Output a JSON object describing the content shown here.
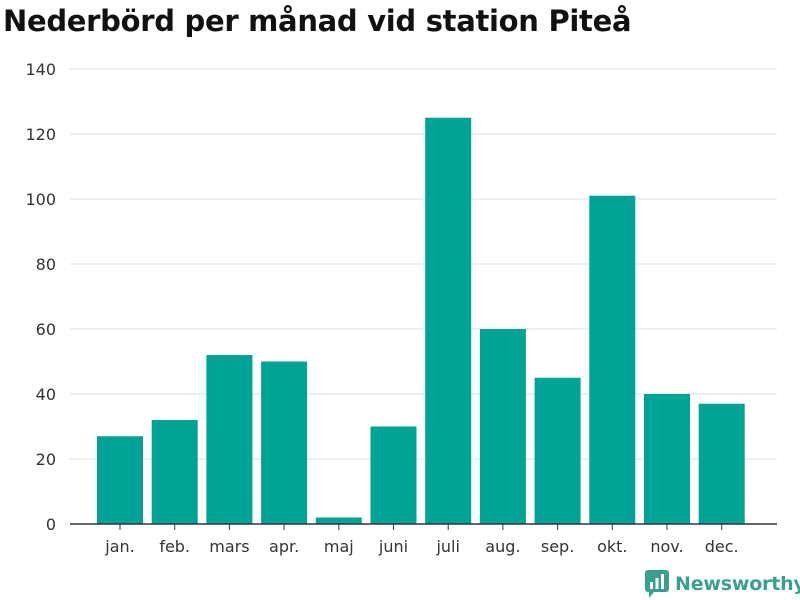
{
  "chart_data": {
    "type": "bar",
    "title": "Nederbörd per månad vid station Piteå",
    "categories": [
      "jan.",
      "feb.",
      "mars",
      "apr.",
      "maj",
      "juni",
      "juli",
      "aug.",
      "sep.",
      "okt.",
      "nov.",
      "dec."
    ],
    "values": [
      27,
      32,
      52,
      50,
      2,
      30,
      125,
      60,
      45,
      101,
      40,
      37
    ],
    "ylim": [
      0,
      140
    ],
    "yticks": [
      0,
      20,
      40,
      60,
      80,
      100,
      120,
      140
    ],
    "grid": true,
    "bar_color": "#00a396"
  },
  "branding": {
    "logo_text": "Newsworthy",
    "logo_color": "#3a9f93"
  }
}
